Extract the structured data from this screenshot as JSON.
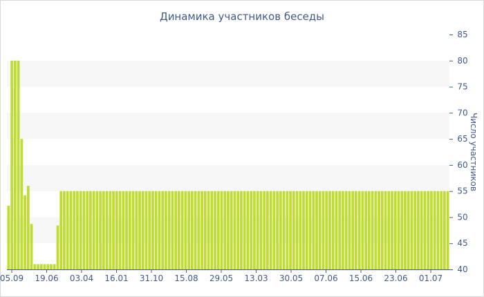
{
  "chart_data": {
    "type": "bar",
    "title": "Динамика участников беседы",
    "ylabel": "Число участников",
    "xlabel": "",
    "ylim": [
      40,
      85
    ],
    "y_ticks": [
      40,
      45,
      50,
      55,
      60,
      65,
      70,
      75,
      80,
      85
    ],
    "x_tick_labels": [
      "05.09",
      "19.06",
      "03.04",
      "16.01",
      "31.10",
      "15.08",
      "29.05",
      "13.03",
      "30.05",
      "07.06",
      "15.06",
      "23.06",
      "01.07"
    ],
    "grid": true,
    "bar_color": "#bedc31",
    "band_color": "#f7f7f7",
    "axis_color": "#3f5a8a",
    "values": [
      52.2,
      80,
      80,
      80,
      65,
      54.2,
      56,
      48.7,
      41,
      41,
      41,
      41,
      41,
      41,
      41,
      48.4,
      55,
      55,
      55,
      55,
      55,
      55,
      55,
      55,
      55,
      55,
      55,
      55,
      55,
      55,
      55,
      55,
      55,
      55,
      55,
      55,
      55,
      55,
      55,
      55,
      55,
      55,
      55,
      55,
      55,
      55,
      55,
      55,
      55,
      55,
      55,
      55,
      55,
      55,
      55,
      55,
      55,
      55,
      55,
      55,
      55,
      55,
      55,
      55,
      55,
      55,
      55,
      55,
      55,
      55,
      55,
      55,
      55,
      55,
      55,
      55,
      55,
      55,
      55,
      55,
      55,
      55,
      55,
      55,
      55,
      55,
      55,
      55,
      55,
      55,
      55,
      55,
      55,
      55,
      55,
      55,
      55,
      55,
      55,
      55,
      55,
      55,
      55,
      55,
      55,
      55,
      55,
      55,
      55,
      55,
      55,
      55,
      55,
      55,
      55,
      55,
      55,
      55,
      55,
      55,
      55,
      55,
      55,
      55,
      55,
      55,
      55,
      55,
      55,
      55,
      55,
      55,
      55,
      55,
      55
    ]
  }
}
